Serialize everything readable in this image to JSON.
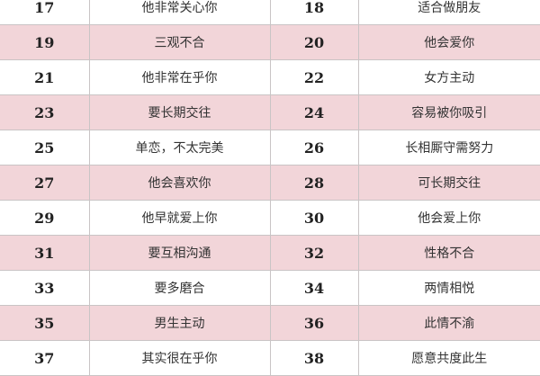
{
  "table": {
    "row_color": "#f2d5d9",
    "rows": [
      {
        "n1": "17",
        "t1": "他非常关心你",
        "n2": "18",
        "t2": "适合做朋友"
      },
      {
        "n1": "19",
        "t1": "三观不合",
        "n2": "20",
        "t2": "他会爱你"
      },
      {
        "n1": "21",
        "t1": "他非常在乎你",
        "n2": "22",
        "t2": "女方主动"
      },
      {
        "n1": "23",
        "t1": "要长期交往",
        "n2": "24",
        "t2": "容易被你吸引"
      },
      {
        "n1": "25",
        "t1": "单恋，不太完美",
        "n2": "26",
        "t2": "长相厮守需努力"
      },
      {
        "n1": "27",
        "t1": "他会喜欢你",
        "n2": "28",
        "t2": "可长期交往"
      },
      {
        "n1": "29",
        "t1": "他早就爱上你",
        "n2": "30",
        "t2": "他会爱上你"
      },
      {
        "n1": "31",
        "t1": "要互相沟通",
        "n2": "32",
        "t2": "性格不合"
      },
      {
        "n1": "33",
        "t1": "要多磨合",
        "n2": "34",
        "t2": "两情相悦"
      },
      {
        "n1": "35",
        "t1": "男生主动",
        "n2": "36",
        "t2": "此情不渝"
      },
      {
        "n1": "37",
        "t1": "其实很在乎你",
        "n2": "38",
        "t2": "愿意共度此生"
      }
    ]
  }
}
